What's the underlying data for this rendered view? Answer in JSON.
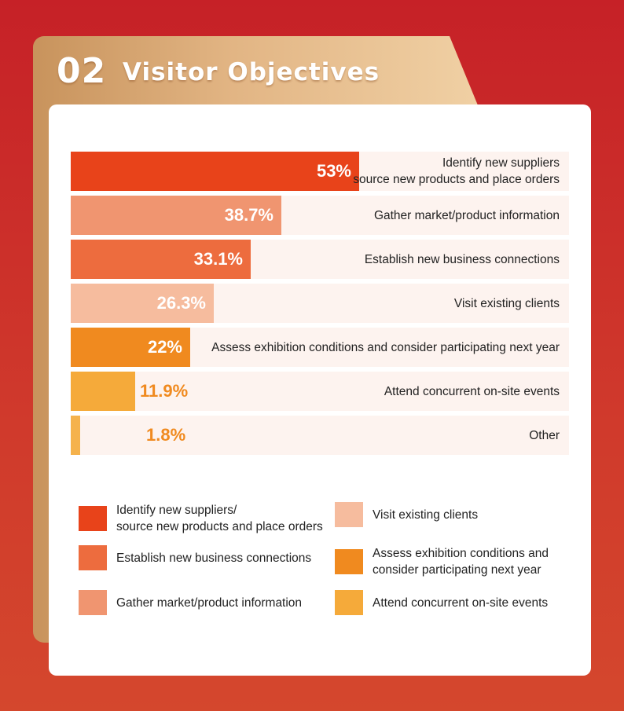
{
  "header": {
    "number": "02",
    "title": "Visitor Objectives"
  },
  "chart_data": {
    "type": "bar",
    "orientation": "horizontal",
    "max": 100,
    "categories": [
      "Identify new suppliers source new products and place orders",
      "Gather market/product information",
      "Establish new business connections",
      "Visit existing clients",
      "Assess exhibition conditions and consider participating next year",
      "Attend concurrent on-site events",
      "Other"
    ],
    "values": [
      53,
      38.7,
      33.1,
      26.3,
      22,
      11.9,
      1.8
    ],
    "bars": [
      {
        "label_lines": [
          "Identify new suppliers",
          "source new products and place orders"
        ],
        "value": 53,
        "display": "53%",
        "color": "#e8431a"
      },
      {
        "label_lines": [
          "Gather market/product information"
        ],
        "value": 38.7,
        "display": "38.7%",
        "color": "#f09570"
      },
      {
        "label_lines": [
          "Establish new business connections"
        ],
        "value": 33.1,
        "display": "33.1%",
        "color": "#ed6c3e"
      },
      {
        "label_lines": [
          "Visit existing clients"
        ],
        "value": 26.3,
        "display": "26.3%",
        "color": "#f6bc9e"
      },
      {
        "label_lines": [
          "Assess exhibition conditions and consider participating next year"
        ],
        "value": 22,
        "display": "22%",
        "color": "#f08a1f"
      },
      {
        "label_lines": [
          "Attend concurrent on-site events"
        ],
        "value": 11.9,
        "display": "11.9%",
        "color": "#f5aa3a"
      },
      {
        "label_lines": [
          "Other"
        ],
        "value": 1.8,
        "display": "1.8%",
        "color": "#f5b24c"
      }
    ],
    "legend": [
      {
        "lines": [
          "Identify new suppliers/",
          "source new products and place orders"
        ],
        "color": "#e8431a"
      },
      {
        "lines": [
          "Visit existing clients"
        ],
        "color": "#f6bc9e"
      },
      {
        "lines": [
          "Establish new business connections"
        ],
        "color": "#ed6c3e"
      },
      {
        "lines": [
          "Assess exhibition conditions and",
          "consider participating next year"
        ],
        "color": "#f08a1f"
      },
      {
        "lines": [
          "Gather market/product information"
        ],
        "color": "#f09570"
      },
      {
        "lines": [
          "Attend concurrent on-site events"
        ],
        "color": "#f5aa3a"
      }
    ]
  }
}
